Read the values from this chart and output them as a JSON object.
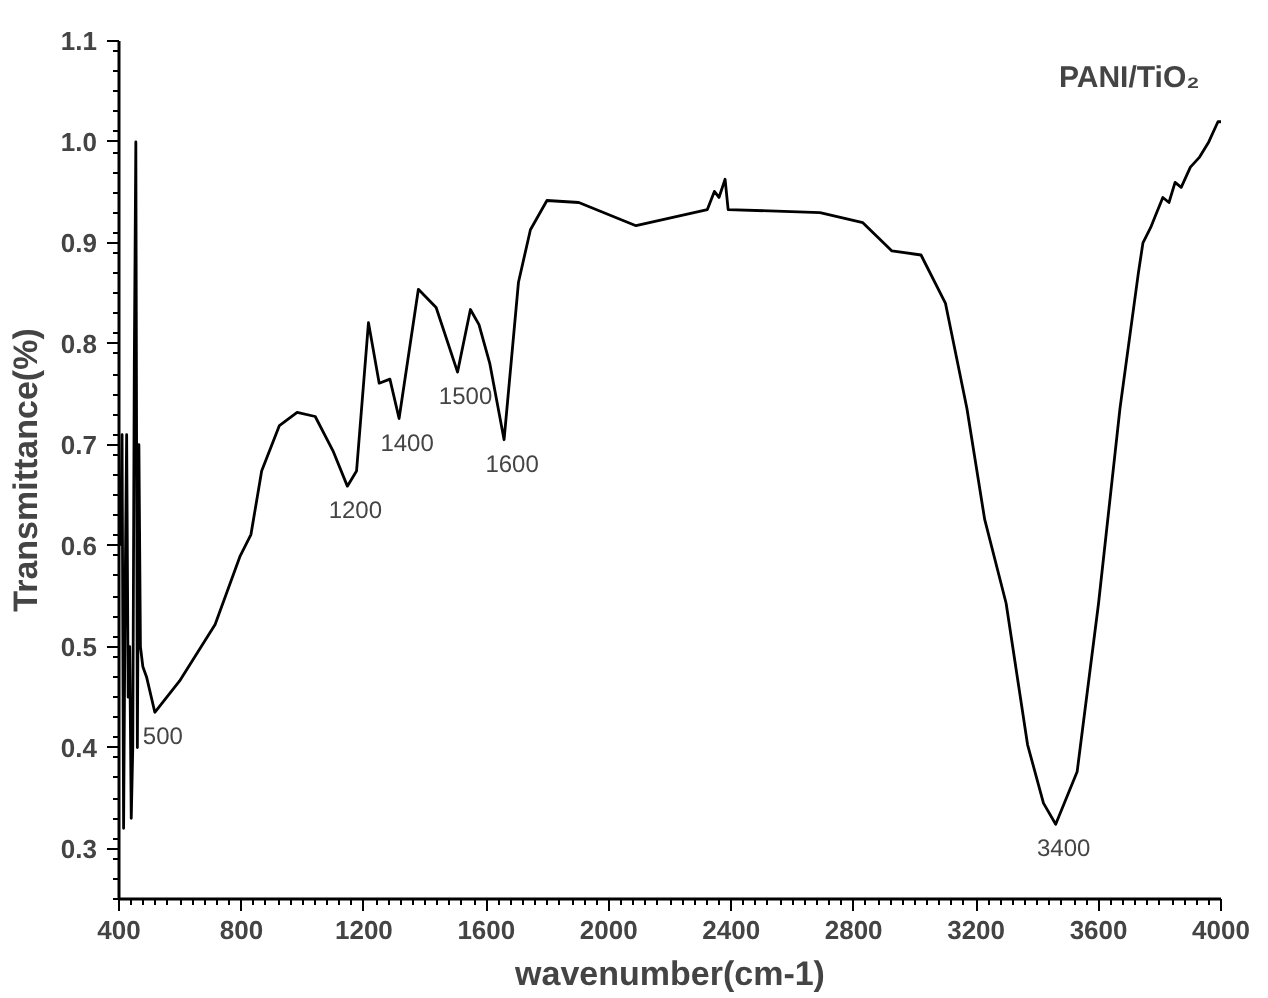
{
  "chart_data": {
    "type": "line",
    "title": "PANI/TiO₂",
    "xlabel": "wavenumber(cm-1)",
    "ylabel": "Transmittance(%)",
    "x": [
      405,
      410,
      415,
      420,
      425,
      430,
      435,
      440,
      445,
      450,
      455,
      460,
      465,
      470,
      478,
      490,
      517,
      598,
      714,
      796,
      831,
      866,
      924,
      982,
      1041,
      1099,
      1146,
      1176,
      1215,
      1250,
      1285,
      1315,
      1378,
      1436,
      1506,
      1548,
      1576,
      1611,
      1658,
      1705,
      1744,
      1798,
      1902,
      2089,
      2322,
      2345,
      2360,
      2380,
      2390,
      2690,
      2830,
      2925,
      3020,
      3100,
      3170,
      3228,
      3298,
      3368,
      3420,
      3460,
      3530,
      3600,
      3670,
      3730,
      3745,
      3770,
      3790,
      3810,
      3830,
      3850,
      3870,
      3900,
      3930,
      3960,
      3990,
      4000
    ],
    "series": [
      {
        "color": "#000000",
        "values": [
          0.6,
          0.71,
          0.32,
          0.55,
          0.71,
          0.45,
          0.5,
          0.33,
          0.4,
          0.78,
          1.0,
          0.4,
          0.7,
          0.5,
          0.48,
          0.47,
          0.435,
          0.466,
          0.522,
          0.59,
          0.611,
          0.674,
          0.719,
          0.732,
          0.728,
          0.694,
          0.659,
          0.674,
          0.821,
          0.761,
          0.765,
          0.726,
          0.854,
          0.836,
          0.772,
          0.834,
          0.819,
          0.781,
          0.705,
          0.861,
          0.913,
          0.942,
          0.94,
          0.917,
          0.933,
          0.951,
          0.945,
          0.963,
          0.933,
          0.93,
          0.92,
          0.892,
          0.888,
          0.84,
          0.736,
          0.626,
          0.543,
          0.403,
          0.345,
          0.324,
          0.376,
          0.543,
          0.736,
          0.87,
          0.9,
          0.915,
          0.93,
          0.945,
          0.94,
          0.96,
          0.955,
          0.975,
          0.985,
          1.0,
          1.02,
          1.02
        ]
      }
    ],
    "annotations": [
      {
        "text": "500",
        "x": 517,
        "y": 0.435
      },
      {
        "text": "1200",
        "x": 1146,
        "y": 0.659
      },
      {
        "text": "1400",
        "x": 1315,
        "y": 0.726
      },
      {
        "text": "1500",
        "x": 1506,
        "y": 0.772
      },
      {
        "text": "1600",
        "x": 1658,
        "y": 0.705
      },
      {
        "text": "3400",
        "x": 3460,
        "y": 0.324
      }
    ],
    "xlim": [
      400,
      4000
    ],
    "xticks": [
      400,
      800,
      1200,
      1600,
      2000,
      2400,
      2800,
      3200,
      3600,
      4000
    ],
    "ylim": [
      0.25,
      1.1
    ],
    "yticks": [
      0.3,
      0.4,
      0.5,
      0.6,
      0.7,
      0.8,
      0.9,
      {
        "value": 1.0,
        "label": "1.0"
      },
      1.1
    ],
    "grid": false,
    "marker": "none",
    "line_style": "solid"
  }
}
